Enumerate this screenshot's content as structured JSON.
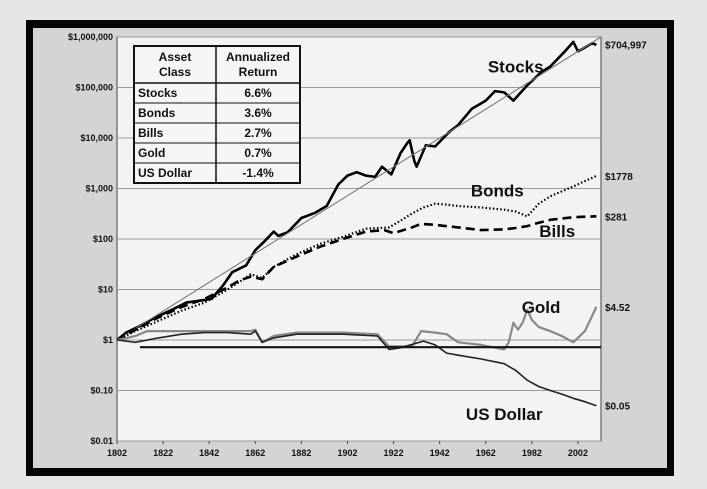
{
  "chart_data": {
    "type": "line",
    "yscale": "log",
    "xlim": [
      1802,
      2012
    ],
    "ylim": [
      0.01,
      1000000
    ],
    "grid": true,
    "x_ticks": [
      "1802",
      "1822",
      "1842",
      "1862",
      "1882",
      "1902",
      "1922",
      "1942",
      "1962",
      "1982",
      "2002"
    ],
    "y_ticks": [
      {
        "value": 1000000,
        "label": "$1,000,000"
      },
      {
        "value": 100000,
        "label": "$100,000"
      },
      {
        "value": 10000,
        "label": "$10,000"
      },
      {
        "value": 1000,
        "label": "$1,000"
      },
      {
        "value": 100,
        "label": "$100"
      },
      {
        "value": 10,
        "label": "$10"
      },
      {
        "value": 1,
        "label": "$1"
      },
      {
        "value": 0.1,
        "label": "$0.10"
      },
      {
        "value": 0.01,
        "label": "$0.01"
      }
    ],
    "table": {
      "headers": [
        [
          "Asset",
          "Class"
        ],
        [
          "Annualized",
          "Return"
        ]
      ],
      "rows": [
        {
          "asset": "Stocks",
          "return": "6.6%"
        },
        {
          "asset": "Bonds",
          "return": "3.6%"
        },
        {
          "asset": "Bills",
          "return": "2.7%"
        },
        {
          "asset": "Gold",
          "return": "0.7%"
        },
        {
          "asset": "US Dollar",
          "return": "-1.4%"
        }
      ]
    },
    "series": [
      {
        "name": "Stocks",
        "end_label": "$704,997",
        "style": "solid-thick",
        "color": "#000000",
        "points": [
          [
            1802,
            1
          ],
          [
            1806,
            1.4
          ],
          [
            1812,
            1.9
          ],
          [
            1818,
            2.7
          ],
          [
            1826,
            4
          ],
          [
            1832,
            5.5
          ],
          [
            1838,
            6
          ],
          [
            1843,
            6.5
          ],
          [
            1848,
            12
          ],
          [
            1852,
            22
          ],
          [
            1858,
            30
          ],
          [
            1862,
            60
          ],
          [
            1866,
            90
          ],
          [
            1870,
            140
          ],
          [
            1872,
            115
          ],
          [
            1876,
            135
          ],
          [
            1882,
            260
          ],
          [
            1888,
            330
          ],
          [
            1893,
            450
          ],
          [
            1898,
            1200
          ],
          [
            1902,
            1800
          ],
          [
            1906,
            2100
          ],
          [
            1910,
            1800
          ],
          [
            1914,
            1700
          ],
          [
            1917,
            2700
          ],
          [
            1921,
            1900
          ],
          [
            1925,
            5000
          ],
          [
            1928,
            8000
          ],
          [
            1929,
            9000
          ],
          [
            1931,
            3500
          ],
          [
            1932,
            2700
          ],
          [
            1936,
            7200
          ],
          [
            1940,
            6800
          ],
          [
            1946,
            13000
          ],
          [
            1950,
            18000
          ],
          [
            1956,
            38000
          ],
          [
            1962,
            55000
          ],
          [
            1966,
            85000
          ],
          [
            1970,
            80000
          ],
          [
            1974,
            55000
          ],
          [
            1980,
            110000
          ],
          [
            1986,
            200000
          ],
          [
            1990,
            260000
          ],
          [
            1996,
            500000
          ],
          [
            2000,
            800000
          ],
          [
            2002,
            520000
          ],
          [
            2004,
            580000
          ],
          [
            2008,
            750000
          ],
          [
            2010,
            704997
          ]
        ]
      },
      {
        "name": "Stocks trend",
        "end_label": "",
        "style": "thin-gray",
        "color": "#777777",
        "points": [
          [
            1802,
            1
          ],
          [
            2012,
            1000000
          ]
        ]
      },
      {
        "name": "Bonds",
        "end_label": "$1778",
        "style": "dotted",
        "color": "#000000",
        "points": [
          [
            1802,
            1
          ],
          [
            1810,
            1.5
          ],
          [
            1820,
            2.4
          ],
          [
            1830,
            3.8
          ],
          [
            1840,
            5.5
          ],
          [
            1850,
            10
          ],
          [
            1855,
            14
          ],
          [
            1860,
            20
          ],
          [
            1865,
            17
          ],
          [
            1870,
            28
          ],
          [
            1880,
            50
          ],
          [
            1890,
            80
          ],
          [
            1900,
            110
          ],
          [
            1910,
            160
          ],
          [
            1920,
            170
          ],
          [
            1925,
            230
          ],
          [
            1930,
            320
          ],
          [
            1935,
            420
          ],
          [
            1940,
            500
          ],
          [
            1945,
            480
          ],
          [
            1950,
            450
          ],
          [
            1960,
            420
          ],
          [
            1970,
            380
          ],
          [
            1975,
            350
          ],
          [
            1980,
            280
          ],
          [
            1985,
            500
          ],
          [
            1990,
            700
          ],
          [
            2000,
            1100
          ],
          [
            2010,
            1778
          ]
        ]
      },
      {
        "name": "Bills",
        "end_label": "$281",
        "style": "dashed",
        "color": "#000000",
        "points": [
          [
            1802,
            1
          ],
          [
            1810,
            1.6
          ],
          [
            1820,
            2.8
          ],
          [
            1830,
            4.5
          ],
          [
            1840,
            6.5
          ],
          [
            1850,
            11
          ],
          [
            1855,
            15
          ],
          [
            1860,
            18
          ],
          [
            1865,
            16
          ],
          [
            1870,
            28
          ],
          [
            1880,
            45
          ],
          [
            1890,
            70
          ],
          [
            1900,
            100
          ],
          [
            1910,
            140
          ],
          [
            1918,
            150
          ],
          [
            1922,
            130
          ],
          [
            1930,
            170
          ],
          [
            1934,
            200
          ],
          [
            1940,
            190
          ],
          [
            1950,
            170
          ],
          [
            1960,
            150
          ],
          [
            1970,
            155
          ],
          [
            1975,
            165
          ],
          [
            1980,
            180
          ],
          [
            1985,
            210
          ],
          [
            1990,
            240
          ],
          [
            2000,
            270
          ],
          [
            2010,
            281
          ]
        ]
      },
      {
        "name": "Gold",
        "end_label": "$4.52",
        "style": "solid-gray",
        "color": "#888888",
        "points": [
          [
            1802,
            1
          ],
          [
            1810,
            1.2
          ],
          [
            1815,
            1.5
          ],
          [
            1830,
            1.5
          ],
          [
            1850,
            1.5
          ],
          [
            1860,
            1.5
          ],
          [
            1862,
            1.6
          ],
          [
            1865,
            0.9
          ],
          [
            1870,
            1.2
          ],
          [
            1880,
            1.4
          ],
          [
            1900,
            1.4
          ],
          [
            1915,
            1.3
          ],
          [
            1920,
            0.75
          ],
          [
            1930,
            0.75
          ],
          [
            1934,
            1.5
          ],
          [
            1940,
            1.4
          ],
          [
            1945,
            1.3
          ],
          [
            1950,
            0.9
          ],
          [
            1960,
            0.8
          ],
          [
            1970,
            0.65
          ],
          [
            1972,
            0.9
          ],
          [
            1974,
            2.2
          ],
          [
            1976,
            1.6
          ],
          [
            1978,
            2.2
          ],
          [
            1980,
            4
          ],
          [
            1982,
            2.5
          ],
          [
            1985,
            1.8
          ],
          [
            1990,
            1.5
          ],
          [
            1995,
            1.2
          ],
          [
            2000,
            0.9
          ],
          [
            2005,
            1.5
          ],
          [
            2010,
            4.52
          ]
        ]
      },
      {
        "name": "US Dollar",
        "end_label": "$0.05",
        "style": "solid",
        "color": "#222222",
        "points": [
          [
            1802,
            1
          ],
          [
            1810,
            0.9
          ],
          [
            1820,
            1.1
          ],
          [
            1830,
            1.3
          ],
          [
            1840,
            1.4
          ],
          [
            1850,
            1.4
          ],
          [
            1860,
            1.3
          ],
          [
            1862,
            1.5
          ],
          [
            1865,
            0.9
          ],
          [
            1870,
            1.1
          ],
          [
            1880,
            1.3
          ],
          [
            1900,
            1.3
          ],
          [
            1915,
            1.2
          ],
          [
            1920,
            0.65
          ],
          [
            1925,
            0.7
          ],
          [
            1935,
            0.95
          ],
          [
            1940,
            0.8
          ],
          [
            1945,
            0.55
          ],
          [
            1950,
            0.5
          ],
          [
            1960,
            0.42
          ],
          [
            1970,
            0.34
          ],
          [
            1975,
            0.25
          ],
          [
            1980,
            0.16
          ],
          [
            1985,
            0.12
          ],
          [
            1990,
            0.1
          ],
          [
            1995,
            0.085
          ],
          [
            2000,
            0.07
          ],
          [
            2005,
            0.06
          ],
          [
            2010,
            0.05
          ]
        ]
      },
      {
        "name": "Constant $1",
        "end_label": "",
        "style": "flat",
        "color": "#111111",
        "points": [
          [
            1812,
            0.72
          ],
          [
            2012,
            0.72
          ]
        ]
      }
    ],
    "series_labels": [
      {
        "text": "Stocks",
        "x": 1975,
        "y": 200000
      },
      {
        "text": "Bonds",
        "x": 1967,
        "y": 700
      },
      {
        "text": "Bills",
        "x": 1993,
        "y": 110
      },
      {
        "text": "Gold",
        "x": 1986,
        "y": 3.4
      },
      {
        "text": "US Dollar",
        "x": 1970,
        "y": 0.026
      }
    ]
  }
}
